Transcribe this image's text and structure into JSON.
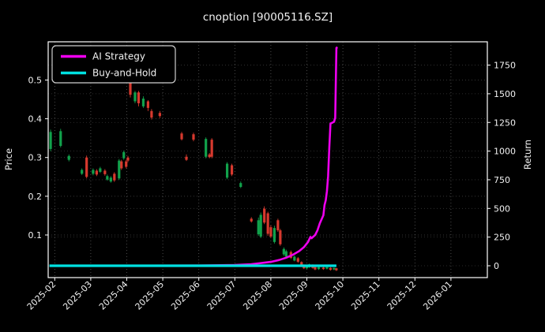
{
  "header": {
    "title": "cnoption [90005116.SZ]"
  },
  "chart_data": {
    "type": "candlestick+line",
    "title": "cnoption [90005116.SZ]",
    "background": "#000000",
    "grid": "dotted, both axes",
    "legend_position": "upper-left",
    "left_axis": {
      "label": "Price",
      "ticks": [
        0.1,
        0.2,
        0.3,
        0.4,
        0.5
      ],
      "range": [
        -0.011,
        0.599
      ]
    },
    "right_axis": {
      "label": "Return",
      "ticks": [
        0,
        250,
        500,
        750,
        1000,
        1250,
        1500,
        1750
      ],
      "range": [
        -103,
        1953
      ]
    },
    "x_axis": {
      "tick_labels": [
        "2025-02",
        "2025-03",
        "2025-04",
        "2025-05",
        "2025-06",
        "2025-07",
        "2025-08",
        "2025-09",
        "2025-10",
        "2025-11",
        "2025-12",
        "2026-01"
      ]
    },
    "legend": [
      {
        "label": "AI Strategy",
        "color": "#ee00ee"
      },
      {
        "label": "Buy-and-Hold",
        "color": "#00e1e1"
      }
    ],
    "colors": {
      "up": "#11a14b",
      "down": "#d7392e",
      "frame": "#ffffff",
      "grid": "#666666",
      "tick_text": "#f2f2f2"
    },
    "candles": [
      {
        "d": "2025-01-28",
        "o": 0.322,
        "h": 0.372,
        "l": 0.316,
        "c": 0.366
      },
      {
        "d": "2025-02-06",
        "o": 0.33,
        "h": 0.374,
        "l": 0.326,
        "c": 0.368
      },
      {
        "d": "2025-02-13",
        "o": 0.294,
        "h": 0.308,
        "l": 0.29,
        "c": 0.304
      },
      {
        "d": "2025-02-24",
        "o": 0.258,
        "h": 0.272,
        "l": 0.255,
        "c": 0.268
      },
      {
        "d": "2025-02-28",
        "o": 0.3,
        "h": 0.305,
        "l": 0.246,
        "c": 0.25
      },
      {
        "d": "2025-03-03",
        "o": 0.258,
        "h": 0.272,
        "l": 0.254,
        "c": 0.268
      },
      {
        "d": "2025-03-06",
        "o": 0.266,
        "h": 0.27,
        "l": 0.252,
        "c": 0.256
      },
      {
        "d": "2025-03-09",
        "o": 0.263,
        "h": 0.276,
        "l": 0.26,
        "c": 0.272
      },
      {
        "d": "2025-03-13",
        "o": 0.266,
        "h": 0.27,
        "l": 0.253,
        "c": 0.257
      },
      {
        "d": "2025-03-15",
        "o": 0.243,
        "h": 0.256,
        "l": 0.24,
        "c": 0.252
      },
      {
        "d": "2025-03-18",
        "o": 0.238,
        "h": 0.252,
        "l": 0.235,
        "c": 0.248
      },
      {
        "d": "2025-03-21",
        "o": 0.258,
        "h": 0.262,
        "l": 0.237,
        "c": 0.241
      },
      {
        "d": "2025-03-25",
        "o": 0.246,
        "h": 0.296,
        "l": 0.242,
        "c": 0.292
      },
      {
        "d": "2025-03-27",
        "o": 0.29,
        "h": 0.294,
        "l": 0.268,
        "c": 0.272
      },
      {
        "d": "2025-03-29",
        "o": 0.298,
        "h": 0.318,
        "l": 0.294,
        "c": 0.314
      },
      {
        "d": "2025-03-31",
        "o": 0.29,
        "h": 0.294,
        "l": 0.272,
        "c": 0.276
      },
      {
        "d": "2025-04-02",
        "o": 0.3,
        "h": 0.304,
        "l": 0.288,
        "c": 0.292
      },
      {
        "d": "2025-04-04",
        "o": 0.5,
        "h": 0.512,
        "l": 0.455,
        "c": 0.462
      },
      {
        "d": "2025-04-08",
        "o": 0.445,
        "h": 0.472,
        "l": 0.44,
        "c": 0.468
      },
      {
        "d": "2025-04-11",
        "o": 0.468,
        "h": 0.472,
        "l": 0.432,
        "c": 0.44
      },
      {
        "d": "2025-04-15",
        "o": 0.432,
        "h": 0.458,
        "l": 0.428,
        "c": 0.452
      },
      {
        "d": "2025-04-19",
        "o": 0.445,
        "h": 0.448,
        "l": 0.42,
        "c": 0.428
      },
      {
        "d": "2025-04-22",
        "o": 0.42,
        "h": 0.425,
        "l": 0.398,
        "c": 0.403
      },
      {
        "d": "2025-04-29",
        "o": 0.415,
        "h": 0.42,
        "l": 0.402,
        "c": 0.407
      },
      {
        "d": "2025-05-17",
        "o": 0.362,
        "h": 0.366,
        "l": 0.344,
        "c": 0.347
      },
      {
        "d": "2025-05-21",
        "o": 0.302,
        "h": 0.308,
        "l": 0.291,
        "c": 0.294
      },
      {
        "d": "2025-05-27",
        "o": 0.36,
        "h": 0.364,
        "l": 0.342,
        "c": 0.346
      },
      {
        "d": "2025-06-07",
        "o": 0.302,
        "h": 0.352,
        "l": 0.298,
        "c": 0.348
      },
      {
        "d": "2025-06-10",
        "o": 0.308,
        "h": 0.312,
        "l": 0.298,
        "c": 0.301
      },
      {
        "d": "2025-06-12",
        "o": 0.346,
        "h": 0.35,
        "l": 0.298,
        "c": 0.302
      },
      {
        "d": "2025-06-25",
        "o": 0.248,
        "h": 0.288,
        "l": 0.244,
        "c": 0.284
      },
      {
        "d": "2025-06-29",
        "o": 0.28,
        "h": 0.284,
        "l": 0.252,
        "c": 0.256
      },
      {
        "d": "2025-07-06",
        "o": 0.224,
        "h": 0.238,
        "l": 0.221,
        "c": 0.234
      },
      {
        "d": "2025-07-15",
        "o": 0.142,
        "h": 0.146,
        "l": 0.132,
        "c": 0.135
      },
      {
        "d": "2025-07-21",
        "o": 0.102,
        "h": 0.145,
        "l": 0.098,
        "c": 0.138
      },
      {
        "d": "2025-07-23",
        "o": 0.096,
        "h": 0.158,
        "l": 0.092,
        "c": 0.152
      },
      {
        "d": "2025-07-26",
        "o": 0.168,
        "h": 0.174,
        "l": 0.128,
        "c": 0.132
      },
      {
        "d": "2025-07-29",
        "o": 0.156,
        "h": 0.16,
        "l": 0.098,
        "c": 0.103
      },
      {
        "d": "2025-08-01",
        "o": 0.12,
        "h": 0.125,
        "l": 0.092,
        "c": 0.096
      },
      {
        "d": "2025-08-04",
        "o": 0.082,
        "h": 0.124,
        "l": 0.078,
        "c": 0.118
      },
      {
        "d": "2025-08-07",
        "o": 0.138,
        "h": 0.142,
        "l": 0.108,
        "c": 0.112
      },
      {
        "d": "2025-08-09",
        "o": 0.112,
        "h": 0.116,
        "l": 0.072,
        "c": 0.076
      },
      {
        "d": "2025-08-12",
        "o": 0.05,
        "h": 0.068,
        "l": 0.046,
        "c": 0.064
      },
      {
        "d": "2025-08-14",
        "o": 0.044,
        "h": 0.062,
        "l": 0.042,
        "c": 0.058
      },
      {
        "d": "2025-08-18",
        "o": 0.056,
        "h": 0.06,
        "l": 0.038,
        "c": 0.041
      },
      {
        "d": "2025-08-21",
        "o": 0.034,
        "h": 0.047,
        "l": 0.032,
        "c": 0.044
      },
      {
        "d": "2025-08-24",
        "o": 0.04,
        "h": 0.043,
        "l": 0.028,
        "c": 0.031
      },
      {
        "d": "2025-08-27",
        "o": 0.03,
        "h": 0.032,
        "l": 0.018,
        "c": 0.02
      },
      {
        "d": "2025-08-29",
        "o": 0.021,
        "h": 0.024,
        "l": 0.012,
        "c": 0.014
      },
      {
        "d": "2025-09-01",
        "o": 0.014,
        "h": 0.021,
        "l": 0.012,
        "c": 0.019
      },
      {
        "d": "2025-09-03",
        "o": 0.017,
        "h": 0.026,
        "l": 0.015,
        "c": 0.024
      },
      {
        "d": "2025-09-06",
        "o": 0.022,
        "h": 0.024,
        "l": 0.013,
        "c": 0.015
      },
      {
        "d": "2025-09-08",
        "o": 0.017,
        "h": 0.019,
        "l": 0.009,
        "c": 0.011
      },
      {
        "d": "2025-09-11",
        "o": 0.012,
        "h": 0.019,
        "l": 0.01,
        "c": 0.017
      },
      {
        "d": "2025-09-15",
        "o": 0.016,
        "h": 0.018,
        "l": 0.01,
        "c": 0.012
      },
      {
        "d": "2025-09-18",
        "o": 0.013,
        "h": 0.019,
        "l": 0.011,
        "c": 0.017
      },
      {
        "d": "2025-09-21",
        "o": 0.015,
        "h": 0.017,
        "l": 0.008,
        "c": 0.01
      },
      {
        "d": "2025-09-24",
        "o": 0.011,
        "h": 0.016,
        "l": 0.009,
        "c": 0.015
      },
      {
        "d": "2025-09-26",
        "o": 0.014,
        "h": 0.015,
        "l": 0.007,
        "c": 0.009
      }
    ],
    "series": [
      {
        "name": "AI Strategy",
        "axis": "return",
        "color": "#ee00ee",
        "width": 2.6,
        "points": [
          [
            "2025-01-28",
            0
          ],
          [
            "2025-06-02",
            2
          ],
          [
            "2025-07-01",
            6
          ],
          [
            "2025-07-15",
            14
          ],
          [
            "2025-07-22",
            22
          ],
          [
            "2025-08-01",
            34
          ],
          [
            "2025-08-08",
            50
          ],
          [
            "2025-08-14",
            70
          ],
          [
            "2025-08-20",
            98
          ],
          [
            "2025-08-25",
            128
          ],
          [
            "2025-08-29",
            162
          ],
          [
            "2025-09-02",
            208
          ],
          [
            "2025-09-04",
            252
          ],
          [
            "2025-09-05",
            240
          ],
          [
            "2025-09-08",
            268
          ],
          [
            "2025-09-10",
            310
          ],
          [
            "2025-09-12",
            370
          ],
          [
            "2025-09-15",
            440
          ],
          [
            "2025-09-16",
            530
          ],
          [
            "2025-09-17",
            570
          ],
          [
            "2025-09-18",
            650
          ],
          [
            "2025-09-19",
            780
          ],
          [
            "2025-09-20",
            1030
          ],
          [
            "2025-09-21",
            1240
          ],
          [
            "2025-09-24",
            1255
          ],
          [
            "2025-09-25",
            1290
          ],
          [
            "2025-09-26",
            1900
          ],
          [
            "2025-09-27",
            1905
          ]
        ]
      },
      {
        "name": "Buy-and-Hold",
        "axis": "return",
        "color": "#00e1e1",
        "width": 3.2,
        "points": [
          [
            "2025-01-27",
            0
          ],
          [
            "2025-09-26",
            0
          ]
        ]
      }
    ]
  }
}
